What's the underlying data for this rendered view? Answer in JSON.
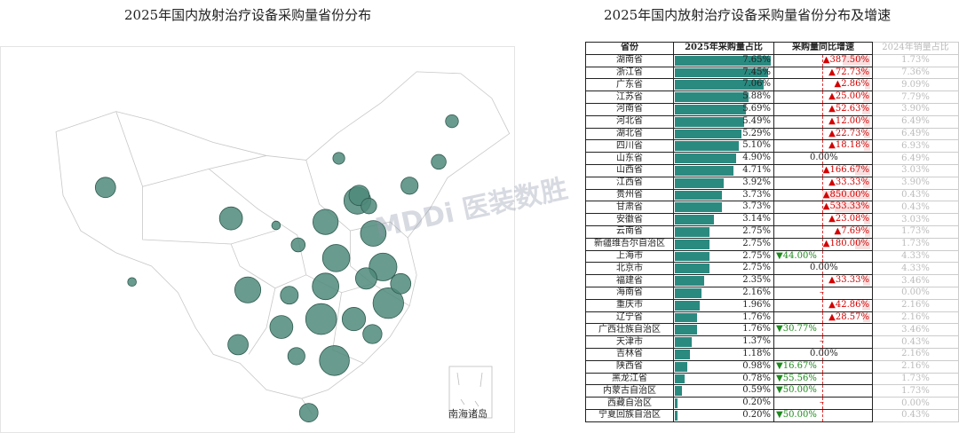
{
  "left_title": "2025年国内放射治疗设备采购量省份分布",
  "right_title": "2025年国内放射治疗设备采购量省份分布及增速",
  "south_china_sea_label": "南海诸岛",
  "watermark": "MDDi 医装数胜",
  "colors": {
    "bar": "#2a8a80",
    "bubble": "#4f8a7a",
    "up": "#d40000",
    "down": "#1f8a1f"
  },
  "table": {
    "headers": [
      "省份",
      "2025年采购量占比",
      "采购量同比增速",
      "2024年销量占比"
    ],
    "rows": [
      {
        "province": "湖南省",
        "share": "7.65%",
        "growth": "387.50%",
        "dir": "up",
        "prev": "1.73%"
      },
      {
        "province": "浙江省",
        "share": "7.45%",
        "growth": "72.73%",
        "dir": "up",
        "prev": "7.36%"
      },
      {
        "province": "广东省",
        "share": "7.06%",
        "growth": "2.86%",
        "dir": "up",
        "prev": "9.09%"
      },
      {
        "province": "江苏省",
        "share": "5.88%",
        "growth": "25.00%",
        "dir": "up",
        "prev": "7.79%"
      },
      {
        "province": "河南省",
        "share": "5.69%",
        "growth": "52.63%",
        "dir": "up",
        "prev": "3.90%"
      },
      {
        "province": "河北省",
        "share": "5.49%",
        "growth": "12.00%",
        "dir": "up",
        "prev": "6.49%"
      },
      {
        "province": "湖北省",
        "share": "5.29%",
        "growth": "22.73%",
        "dir": "up",
        "prev": "6.49%"
      },
      {
        "province": "四川省",
        "share": "5.10%",
        "growth": "18.18%",
        "dir": "up",
        "prev": "6.93%"
      },
      {
        "province": "山东省",
        "share": "4.90%",
        "growth": "0.00%",
        "dir": "flat",
        "prev": "6.49%"
      },
      {
        "province": "山西省",
        "share": "4.71%",
        "growth": "166.67%",
        "dir": "up",
        "prev": "3.03%"
      },
      {
        "province": "江西省",
        "share": "3.92%",
        "growth": "33.33%",
        "dir": "up",
        "prev": "3.90%"
      },
      {
        "province": "贵州省",
        "share": "3.73%",
        "growth": "850.00%",
        "dir": "up",
        "prev": "0.43%"
      },
      {
        "province": "甘肃省",
        "share": "3.73%",
        "growth": "533.33%",
        "dir": "up",
        "prev": "0.43%"
      },
      {
        "province": "安徽省",
        "share": "3.14%",
        "growth": "23.08%",
        "dir": "up",
        "prev": "3.03%"
      },
      {
        "province": "云南省",
        "share": "2.75%",
        "growth": "7.69%",
        "dir": "up",
        "prev": "1.73%"
      },
      {
        "province": "新疆维吾尔自治区",
        "share": "2.75%",
        "growth": "180.00%",
        "dir": "up",
        "prev": "1.73%"
      },
      {
        "province": "上海市",
        "share": "2.75%",
        "growth": "44.00%",
        "dir": "down",
        "prev": "4.33%"
      },
      {
        "province": "北京市",
        "share": "2.75%",
        "growth": "0.00%",
        "dir": "flat",
        "prev": "4.33%"
      },
      {
        "province": "福建省",
        "share": "2.35%",
        "growth": "33.33%",
        "dir": "up",
        "prev": "3.46%"
      },
      {
        "province": "海南省",
        "share": "2.16%",
        "growth": "–",
        "dir": "none",
        "prev": "0.00%"
      },
      {
        "province": "重庆市",
        "share": "1.96%",
        "growth": "42.86%",
        "dir": "up",
        "prev": "2.16%"
      },
      {
        "province": "辽宁省",
        "share": "1.76%",
        "growth": "28.57%",
        "dir": "up",
        "prev": "2.16%"
      },
      {
        "province": "广西壮族自治区",
        "share": "1.76%",
        "growth": "30.77%",
        "dir": "down",
        "prev": "3.46%"
      },
      {
        "province": "天津市",
        "share": "1.37%",
        "growth": "–",
        "dir": "none",
        "prev": "0.43%"
      },
      {
        "province": "吉林省",
        "share": "1.18%",
        "growth": "0.00%",
        "dir": "flat",
        "prev": "2.16%"
      },
      {
        "province": "陕西省",
        "share": "0.98%",
        "growth": "16.67%",
        "dir": "down",
        "prev": "2.16%"
      },
      {
        "province": "黑龙江省",
        "share": "0.78%",
        "growth": "55.56%",
        "dir": "down",
        "prev": "1.73%"
      },
      {
        "province": "内蒙古自治区",
        "share": "0.59%",
        "growth": "50.00%",
        "dir": "down",
        "prev": "1.73%"
      },
      {
        "province": "西藏自治区",
        "share": "0.20%",
        "growth": "–",
        "dir": "none",
        "prev": "0.00%"
      },
      {
        "province": "宁夏回族自治区",
        "share": "0.20%",
        "growth": "50.00%",
        "dir": "down",
        "prev": "0.43%"
      }
    ]
  },
  "chart_data": [
    {
      "type": "table",
      "title": "2025年国内放射治疗设备采购量省份分布及增速",
      "columns": [
        "省份",
        "2025年采购量占比",
        "采购量同比增速",
        "2024年销量占比"
      ],
      "share_pct": [
        7.65,
        7.45,
        7.06,
        5.88,
        5.69,
        5.49,
        5.29,
        5.1,
        4.9,
        4.71,
        3.92,
        3.73,
        3.73,
        3.14,
        2.75,
        2.75,
        2.75,
        2.75,
        2.35,
        2.16,
        1.96,
        1.76,
        1.76,
        1.37,
        1.18,
        0.98,
        0.78,
        0.59,
        0.2,
        0.2
      ],
      "growth_pct": [
        387.5,
        72.73,
        2.86,
        25.0,
        52.63,
        12.0,
        22.73,
        18.18,
        0.0,
        166.67,
        33.33,
        850.0,
        533.33,
        23.08,
        7.69,
        180.0,
        -44.0,
        0.0,
        33.33,
        null,
        42.86,
        28.57,
        -30.77,
        null,
        0.0,
        -16.67,
        -55.56,
        -50.0,
        null,
        -50.0
      ],
      "prev_share_pct": [
        1.73,
        7.36,
        9.09,
        7.79,
        3.9,
        6.49,
        6.49,
        6.93,
        6.49,
        3.03,
        3.9,
        0.43,
        0.43,
        3.03,
        1.73,
        1.73,
        4.33,
        4.33,
        3.46,
        0.0,
        2.16,
        2.16,
        3.46,
        0.43,
        2.16,
        2.16,
        1.73,
        1.73,
        0.0,
        0.43
      ]
    },
    {
      "type": "scatter",
      "title": "2025年国内放射治疗设备采购量省份分布",
      "bubbles": [
        {
          "province": "湖南省",
          "value": 7.65
        },
        {
          "province": "浙江省",
          "value": 7.45
        },
        {
          "province": "广东省",
          "value": 7.06
        },
        {
          "province": "江苏省",
          "value": 5.88
        },
        {
          "province": "河南省",
          "value": 5.69
        },
        {
          "province": "河北省",
          "value": 5.49
        },
        {
          "province": "湖北省",
          "value": 5.29
        },
        {
          "province": "四川省",
          "value": 5.1
        },
        {
          "province": "山东省",
          "value": 4.9
        },
        {
          "province": "山西省",
          "value": 4.71
        },
        {
          "province": "江西省",
          "value": 3.92
        },
        {
          "province": "贵州省",
          "value": 3.73
        },
        {
          "province": "甘肃省",
          "value": 3.73
        },
        {
          "province": "安徽省",
          "value": 3.14
        },
        {
          "province": "云南省",
          "value": 2.75
        },
        {
          "province": "新疆维吾尔自治区",
          "value": 2.75
        },
        {
          "province": "上海市",
          "value": 2.75
        },
        {
          "province": "北京市",
          "value": 2.75
        },
        {
          "province": "福建省",
          "value": 2.35
        },
        {
          "province": "海南省",
          "value": 2.16
        },
        {
          "province": "重庆市",
          "value": 1.96
        },
        {
          "province": "辽宁省",
          "value": 1.76
        },
        {
          "province": "广西壮族自治区",
          "value": 1.76
        },
        {
          "province": "天津市",
          "value": 1.37
        },
        {
          "province": "吉林省",
          "value": 1.18
        },
        {
          "province": "陕西省",
          "value": 0.98
        },
        {
          "province": "黑龙江省",
          "value": 0.78
        },
        {
          "province": "内蒙古自治区",
          "value": 0.59
        },
        {
          "province": "西藏自治区",
          "value": 0.2
        },
        {
          "province": "宁夏回族自治区",
          "value": 0.2
        }
      ]
    }
  ]
}
